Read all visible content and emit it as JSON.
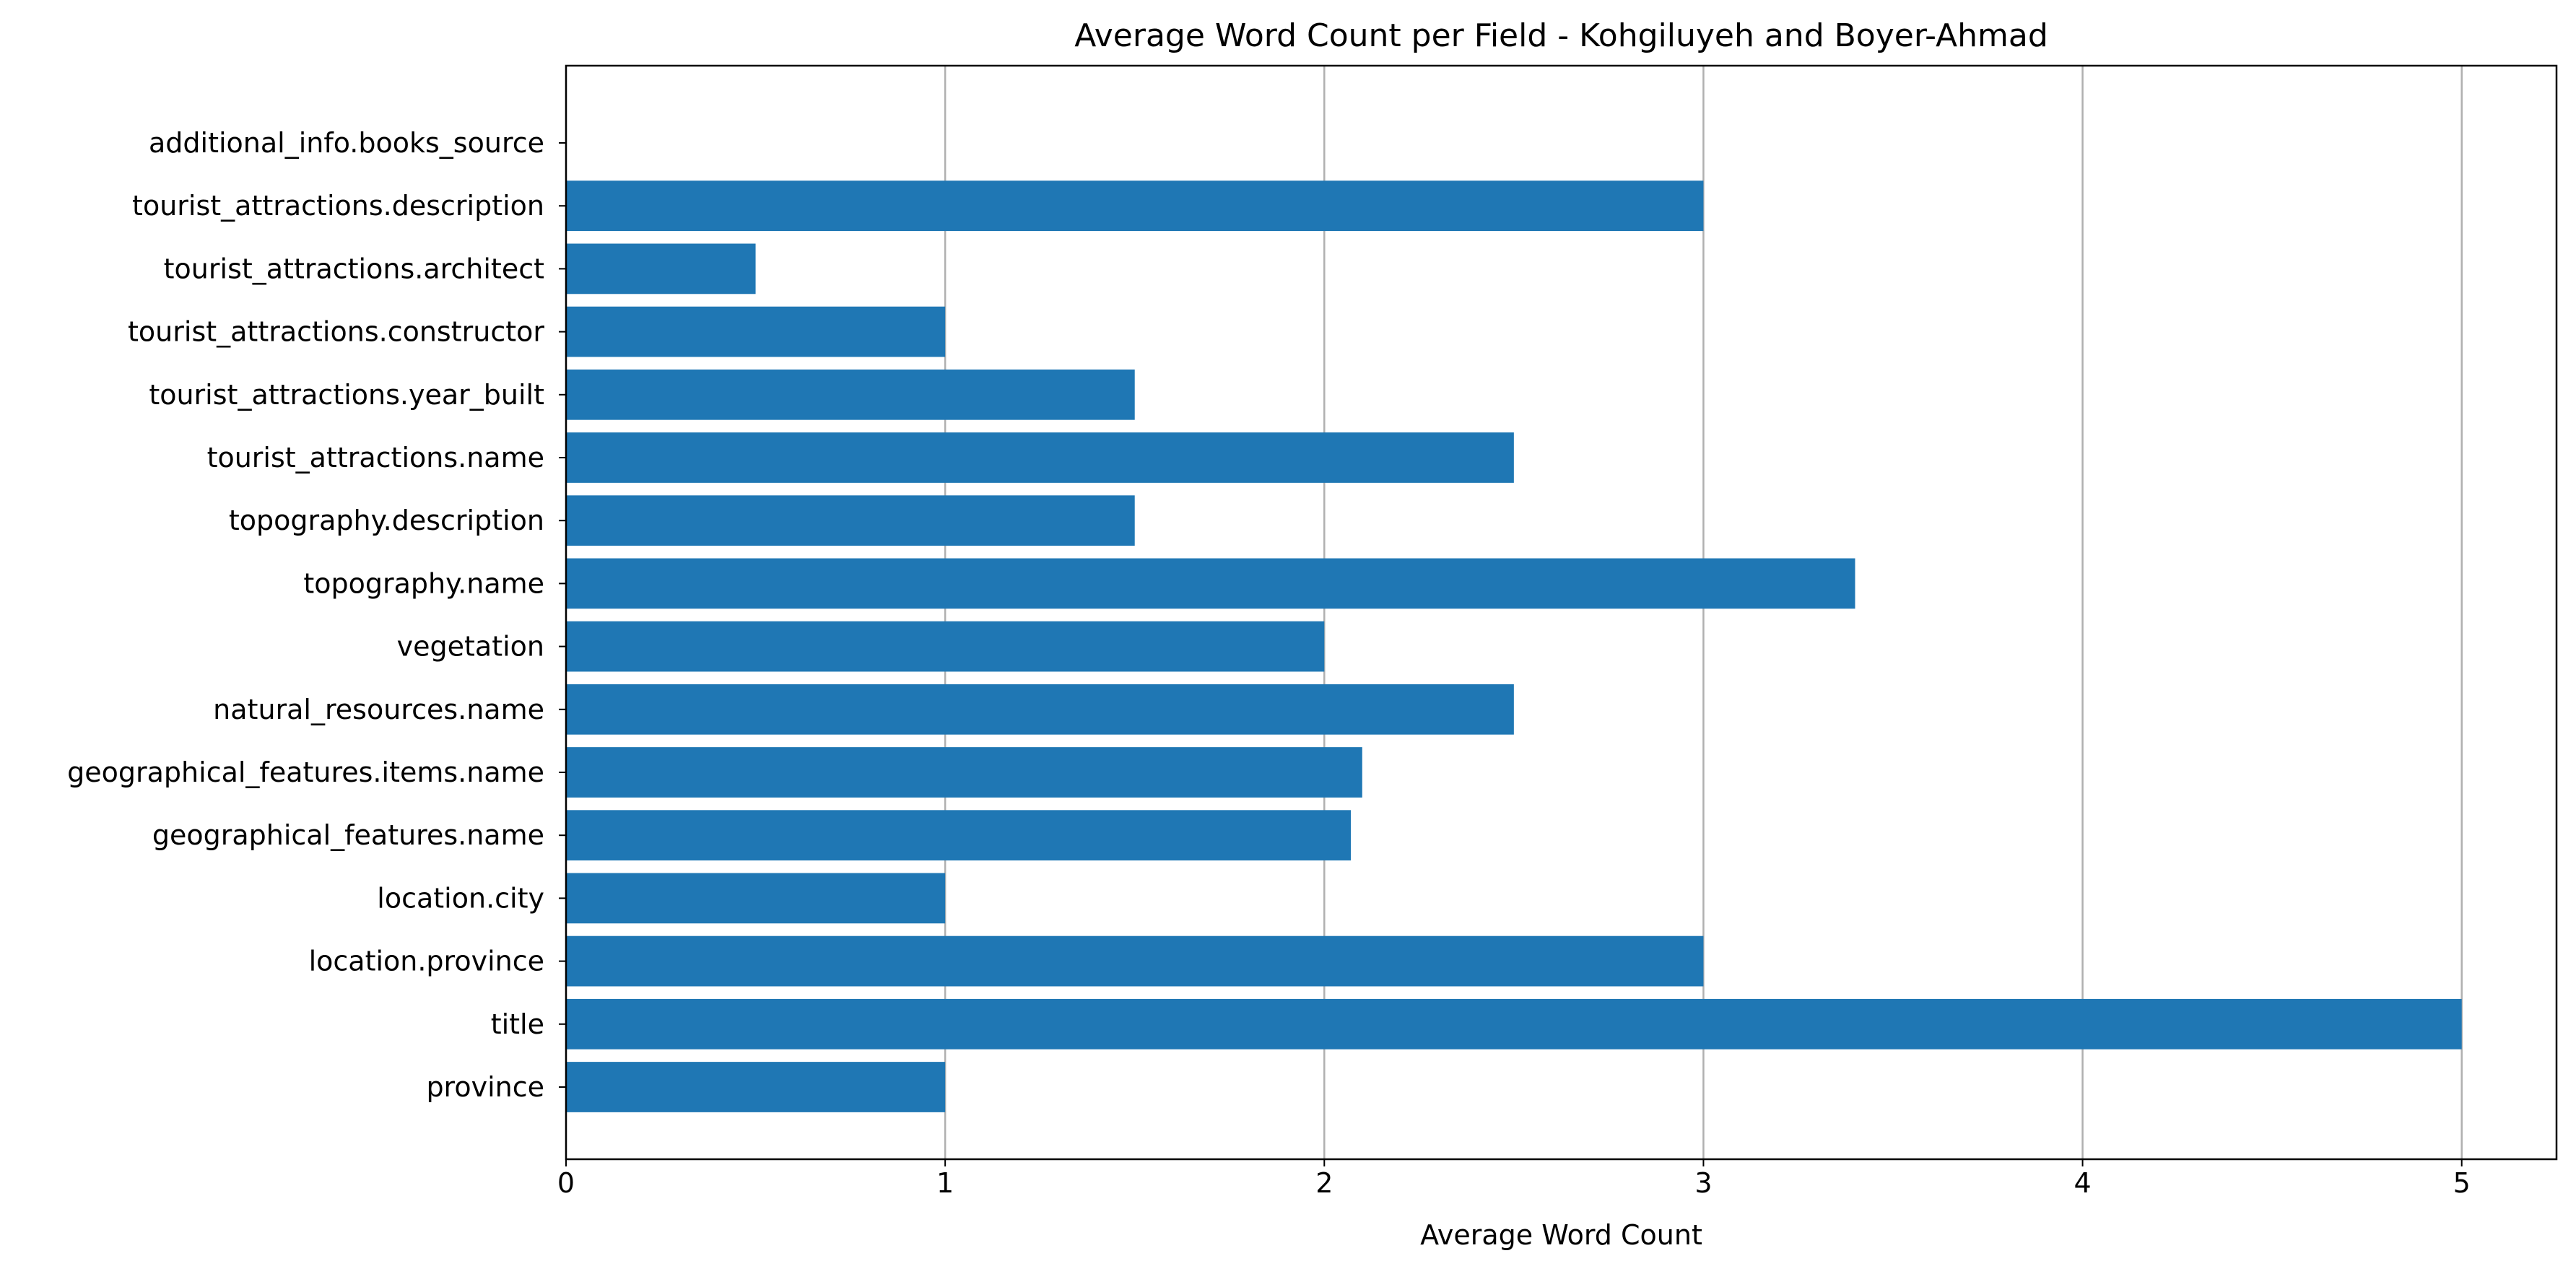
{
  "chart_data": {
    "type": "bar",
    "orientation": "horizontal",
    "title": "Average Word Count per Field - Kohgiluyeh and Boyer-Ahmad",
    "xlabel": "Average Word Count",
    "ylabel": "",
    "xlim": [
      0,
      5.25
    ],
    "x_ticks": [
      0,
      1,
      2,
      3,
      4,
      5
    ],
    "grid": "x-major",
    "bar_color": "#1f77b4",
    "categories": [
      "province",
      "title",
      "location.province",
      "location.city",
      "geographical_features.name",
      "geographical_features.items.name",
      "natural_resources.name",
      "vegetation",
      "topography.name",
      "topography.description",
      "tourist_attractions.name",
      "tourist_attractions.year_built",
      "tourist_attractions.constructor",
      "tourist_attractions.architect",
      "tourist_attractions.description",
      "additional_info.books_source"
    ],
    "values": [
      1,
      5,
      3,
      1,
      2.07,
      2.1,
      2.5,
      2,
      3.4,
      1.5,
      2.5,
      1.5,
      1,
      0.5,
      3,
      0
    ]
  }
}
